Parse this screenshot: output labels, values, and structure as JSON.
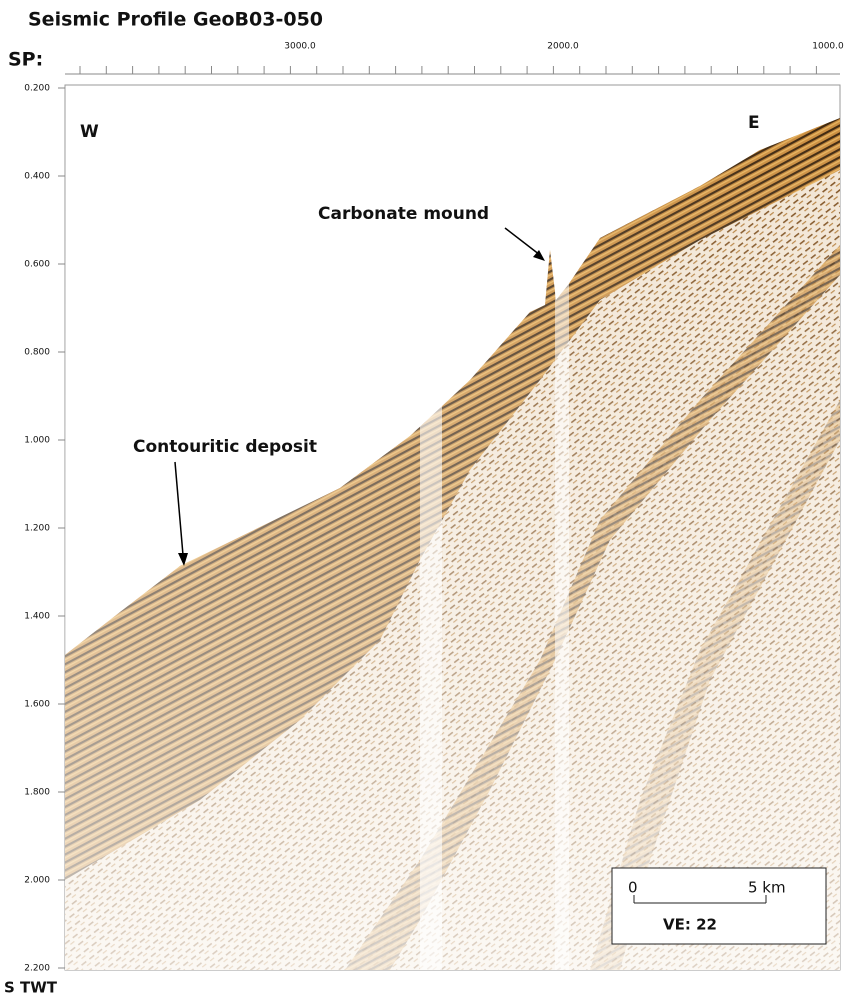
{
  "header": {
    "title": "Seismic Profile GeoB03-050"
  },
  "axes": {
    "top_label": "SP:",
    "top_ticks": [
      "3000.0",
      "2000.0",
      "1000.0"
    ],
    "left_ticks": [
      "0.200",
      "0.400",
      "0.600",
      "0.800",
      "1.000",
      "1.200",
      "1.400",
      "1.600",
      "1.800",
      "2.000",
      "2.200"
    ],
    "left_label": "S TWT"
  },
  "annotations": {
    "west": "W",
    "east": "E",
    "mound": "Carbonate mound",
    "deposit": "Contouritic deposit"
  },
  "scale_box": {
    "start": "0",
    "end": "5 km",
    "ve": "VE: 22"
  }
}
